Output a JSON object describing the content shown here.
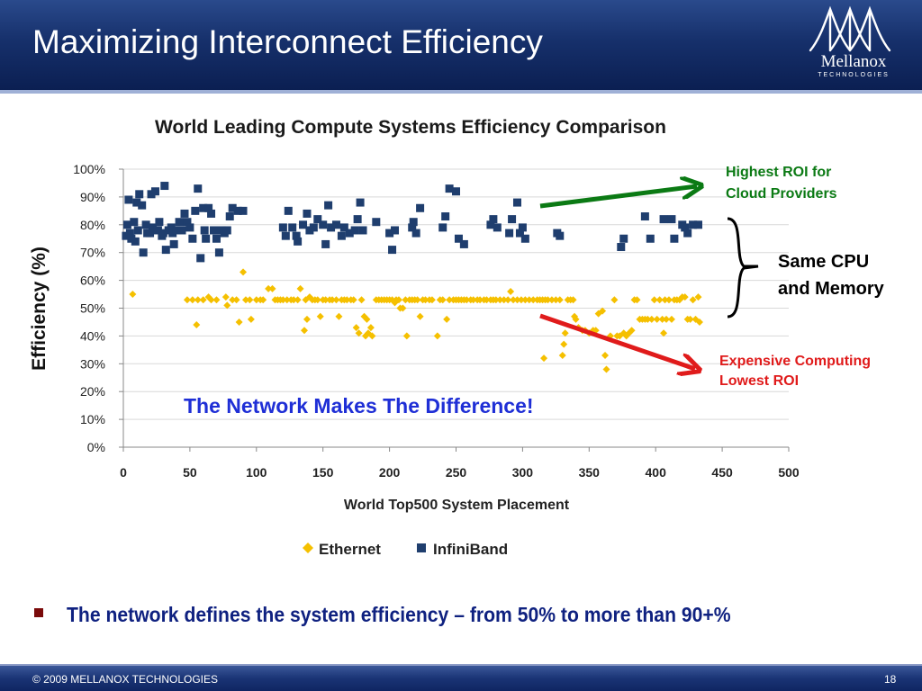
{
  "slide": {
    "title": "Maximizing Interconnect  Efficiency",
    "logo_name": "Mellanox",
    "logo_sub": "TECHNOLOGIES",
    "annotations": {
      "highest_roi": [
        "Highest ROI for",
        "Cloud Providers"
      ],
      "same_cpu": [
        "Same CPU",
        "and Memory"
      ],
      "expensive": [
        "Expensive Computing",
        "Lowest ROI"
      ],
      "network": "The Network Makes The Difference!"
    },
    "colors": {
      "green_arrow": "#0b7a14",
      "red_arrow": "#e01b1b",
      "header_blue": "#16306b"
    },
    "bullet": "The network defines the system efficiency – from 50% to more than  90+%",
    "footer": {
      "copyright": "© 2009  MELLANOX TECHNOLOGIES",
      "page": "18"
    }
  },
  "chart_data": {
    "type": "scatter",
    "title": "World Leading Compute Systems Efficiency Comparison",
    "xlabel": "World Top500 System Placement",
    "ylabel": "Efficiency (%)",
    "xlim": [
      0,
      500
    ],
    "ylim": [
      0,
      100
    ],
    "x_ticks": [
      "0",
      "50",
      "100",
      "150",
      "200",
      "250",
      "300",
      "350",
      "400",
      "450",
      "500"
    ],
    "y_ticks": [
      "0%",
      "10%",
      "20%",
      "30%",
      "40%",
      "50%",
      "60%",
      "70%",
      "80%",
      "90%",
      "100%"
    ],
    "legend_position": "bottom",
    "series": [
      {
        "name": "Ethernet",
        "color": "#f5c000",
        "marker": "diamond",
        "points": [
          [
            7,
            55
          ],
          [
            48,
            53
          ],
          [
            52,
            53
          ],
          [
            56,
            53
          ],
          [
            55,
            44
          ],
          [
            60,
            53
          ],
          [
            64,
            54
          ],
          [
            66,
            53
          ],
          [
            70,
            53
          ],
          [
            77,
            54
          ],
          [
            78,
            51
          ],
          [
            82,
            53
          ],
          [
            85,
            53
          ],
          [
            87,
            45
          ],
          [
            90,
            63
          ],
          [
            92,
            53
          ],
          [
            95,
            53
          ],
          [
            96,
            46
          ],
          [
            100,
            53
          ],
          [
            103,
            53
          ],
          [
            105,
            53
          ],
          [
            109,
            57
          ],
          [
            112,
            57
          ],
          [
            114,
            53
          ],
          [
            116,
            53
          ],
          [
            118,
            53
          ],
          [
            120,
            53
          ],
          [
            123,
            53
          ],
          [
            126,
            53
          ],
          [
            128,
            53
          ],
          [
            131,
            53
          ],
          [
            133,
            57
          ],
          [
            136,
            42
          ],
          [
            137,
            53
          ],
          [
            138,
            46
          ],
          [
            140,
            54
          ],
          [
            142,
            53
          ],
          [
            144,
            53
          ],
          [
            146,
            53
          ],
          [
            148,
            47
          ],
          [
            150,
            53
          ],
          [
            152,
            53
          ],
          [
            155,
            53
          ],
          [
            157,
            53
          ],
          [
            160,
            53
          ],
          [
            162,
            47
          ],
          [
            164,
            53
          ],
          [
            166,
            53
          ],
          [
            168,
            53
          ],
          [
            171,
            53
          ],
          [
            173,
            53
          ],
          [
            175,
            43
          ],
          [
            177,
            41
          ],
          [
            179,
            53
          ],
          [
            181,
            47
          ],
          [
            182,
            40
          ],
          [
            183,
            46
          ],
          [
            184,
            41
          ],
          [
            186,
            43
          ],
          [
            187,
            40
          ],
          [
            190,
            53
          ],
          [
            192,
            53
          ],
          [
            194,
            53
          ],
          [
            196,
            53
          ],
          [
            198,
            53
          ],
          [
            200,
            53
          ],
          [
            202,
            53
          ],
          [
            204,
            52
          ],
          [
            205,
            53
          ],
          [
            207,
            53
          ],
          [
            208,
            50
          ],
          [
            210,
            50
          ],
          [
            212,
            53
          ],
          [
            213,
            40
          ],
          [
            215,
            53
          ],
          [
            217,
            53
          ],
          [
            219,
            53
          ],
          [
            221,
            53
          ],
          [
            223,
            47
          ],
          [
            225,
            53
          ],
          [
            227,
            53
          ],
          [
            230,
            53
          ],
          [
            232,
            53
          ],
          [
            236,
            40
          ],
          [
            238,
            53
          ],
          [
            240,
            53
          ],
          [
            243,
            46
          ],
          [
            245,
            53
          ],
          [
            248,
            53
          ],
          [
            250,
            53
          ],
          [
            252,
            53
          ],
          [
            254,
            53
          ],
          [
            256,
            53
          ],
          [
            258,
            53
          ],
          [
            261,
            53
          ],
          [
            263,
            53
          ],
          [
            266,
            53
          ],
          [
            268,
            53
          ],
          [
            271,
            53
          ],
          [
            273,
            53
          ],
          [
            276,
            53
          ],
          [
            278,
            53
          ],
          [
            280,
            53
          ],
          [
            283,
            53
          ],
          [
            286,
            53
          ],
          [
            289,
            53
          ],
          [
            291,
            56
          ],
          [
            293,
            53
          ],
          [
            296,
            53
          ],
          [
            299,
            53
          ],
          [
            302,
            53
          ],
          [
            305,
            53
          ],
          [
            308,
            53
          ],
          [
            311,
            53
          ],
          [
            313,
            53
          ],
          [
            315,
            53
          ],
          [
            317,
            53
          ],
          [
            319,
            53
          ],
          [
            322,
            53
          ],
          [
            325,
            53
          ],
          [
            328,
            53
          ],
          [
            330,
            33
          ],
          [
            331,
            37
          ],
          [
            332,
            41
          ],
          [
            334,
            53
          ],
          [
            336,
            53
          ],
          [
            338,
            53
          ],
          [
            339,
            47
          ],
          [
            340,
            46
          ],
          [
            342,
            43
          ],
          [
            345,
            42
          ],
          [
            347,
            42
          ],
          [
            350,
            41
          ],
          [
            353,
            42
          ],
          [
            355,
            42
          ],
          [
            357,
            48
          ],
          [
            360,
            49
          ],
          [
            362,
            33
          ],
          [
            363,
            28
          ],
          [
            366,
            40
          ],
          [
            369,
            53
          ],
          [
            371,
            40
          ],
          [
            373,
            40
          ],
          [
            376,
            41
          ],
          [
            378,
            40
          ],
          [
            380,
            41
          ],
          [
            382,
            42
          ],
          [
            384,
            53
          ],
          [
            386,
            53
          ],
          [
            388,
            46
          ],
          [
            390,
            46
          ],
          [
            392,
            46
          ],
          [
            394,
            46
          ],
          [
            397,
            46
          ],
          [
            399,
            53
          ],
          [
            401,
            46
          ],
          [
            403,
            53
          ],
          [
            405,
            46
          ],
          [
            407,
            53
          ],
          [
            408,
            46
          ],
          [
            410,
            53
          ],
          [
            412,
            46
          ],
          [
            414,
            53
          ],
          [
            416,
            53
          ],
          [
            418,
            53
          ],
          [
            420,
            54
          ],
          [
            422,
            54
          ],
          [
            424,
            46
          ],
          [
            426,
            46
          ],
          [
            428,
            53
          ],
          [
            430,
            46
          ],
          [
            432,
            54
          ],
          [
            433,
            45
          ],
          [
            406,
            41
          ],
          [
            316,
            32
          ]
        ]
      },
      {
        "name": "InfiniBand",
        "color": "#1f3e6e",
        "marker": "square",
        "points": [
          [
            2,
            76
          ],
          [
            3,
            80
          ],
          [
            4,
            89
          ],
          [
            5,
            77
          ],
          [
            6,
            75
          ],
          [
            8,
            81
          ],
          [
            9,
            74
          ],
          [
            10,
            88
          ],
          [
            11,
            78
          ],
          [
            12,
            91
          ],
          [
            14,
            87
          ],
          [
            15,
            70
          ],
          [
            17,
            80
          ],
          [
            18,
            77
          ],
          [
            20,
            77
          ],
          [
            21,
            91
          ],
          [
            22,
            79
          ],
          [
            24,
            92
          ],
          [
            26,
            78
          ],
          [
            27,
            81
          ],
          [
            29,
            76
          ],
          [
            30,
            77
          ],
          [
            31,
            94
          ],
          [
            32,
            71
          ],
          [
            34,
            78
          ],
          [
            36,
            79
          ],
          [
            37,
            77
          ],
          [
            38,
            73
          ],
          [
            40,
            78
          ],
          [
            42,
            81
          ],
          [
            44,
            78
          ],
          [
            46,
            84
          ],
          [
            48,
            81
          ],
          [
            50,
            79
          ],
          [
            52,
            75
          ],
          [
            54,
            85
          ],
          [
            56,
            93
          ],
          [
            58,
            68
          ],
          [
            60,
            86
          ],
          [
            61,
            78
          ],
          [
            62,
            75
          ],
          [
            64,
            86
          ],
          [
            66,
            84
          ],
          [
            68,
            78
          ],
          [
            70,
            75
          ],
          [
            72,
            70
          ],
          [
            74,
            78
          ],
          [
            76,
            77
          ],
          [
            78,
            78
          ],
          [
            80,
            83
          ],
          [
            82,
            86
          ],
          [
            86,
            85
          ],
          [
            90,
            85
          ],
          [
            120,
            79
          ],
          [
            122,
            76
          ],
          [
            124,
            85
          ],
          [
            127,
            79
          ],
          [
            130,
            76
          ],
          [
            131,
            74
          ],
          [
            135,
            80
          ],
          [
            138,
            84
          ],
          [
            140,
            78
          ],
          [
            143,
            79
          ],
          [
            146,
            82
          ],
          [
            150,
            80
          ],
          [
            152,
            73
          ],
          [
            154,
            87
          ],
          [
            156,
            79
          ],
          [
            160,
            80
          ],
          [
            164,
            76
          ],
          [
            166,
            79
          ],
          [
            170,
            77
          ],
          [
            174,
            78
          ],
          [
            176,
            82
          ],
          [
            178,
            88
          ],
          [
            180,
            78
          ],
          [
            190,
            81
          ],
          [
            200,
            77
          ],
          [
            202,
            71
          ],
          [
            204,
            78
          ],
          [
            217,
            79
          ],
          [
            218,
            81
          ],
          [
            220,
            77
          ],
          [
            223,
            86
          ],
          [
            240,
            79
          ],
          [
            242,
            83
          ],
          [
            245,
            93
          ],
          [
            250,
            92
          ],
          [
            252,
            75
          ],
          [
            256,
            73
          ],
          [
            276,
            80
          ],
          [
            278,
            82
          ],
          [
            281,
            79
          ],
          [
            290,
            77
          ],
          [
            292,
            82
          ],
          [
            296,
            88
          ],
          [
            298,
            77
          ],
          [
            300,
            79
          ],
          [
            302,
            75
          ],
          [
            326,
            77
          ],
          [
            328,
            76
          ],
          [
            374,
            72
          ],
          [
            376,
            75
          ],
          [
            392,
            83
          ],
          [
            396,
            75
          ],
          [
            406,
            82
          ],
          [
            412,
            82
          ],
          [
            414,
            75
          ],
          [
            420,
            80
          ],
          [
            422,
            79
          ],
          [
            424,
            77
          ],
          [
            428,
            80
          ],
          [
            432,
            80
          ]
        ]
      }
    ]
  }
}
